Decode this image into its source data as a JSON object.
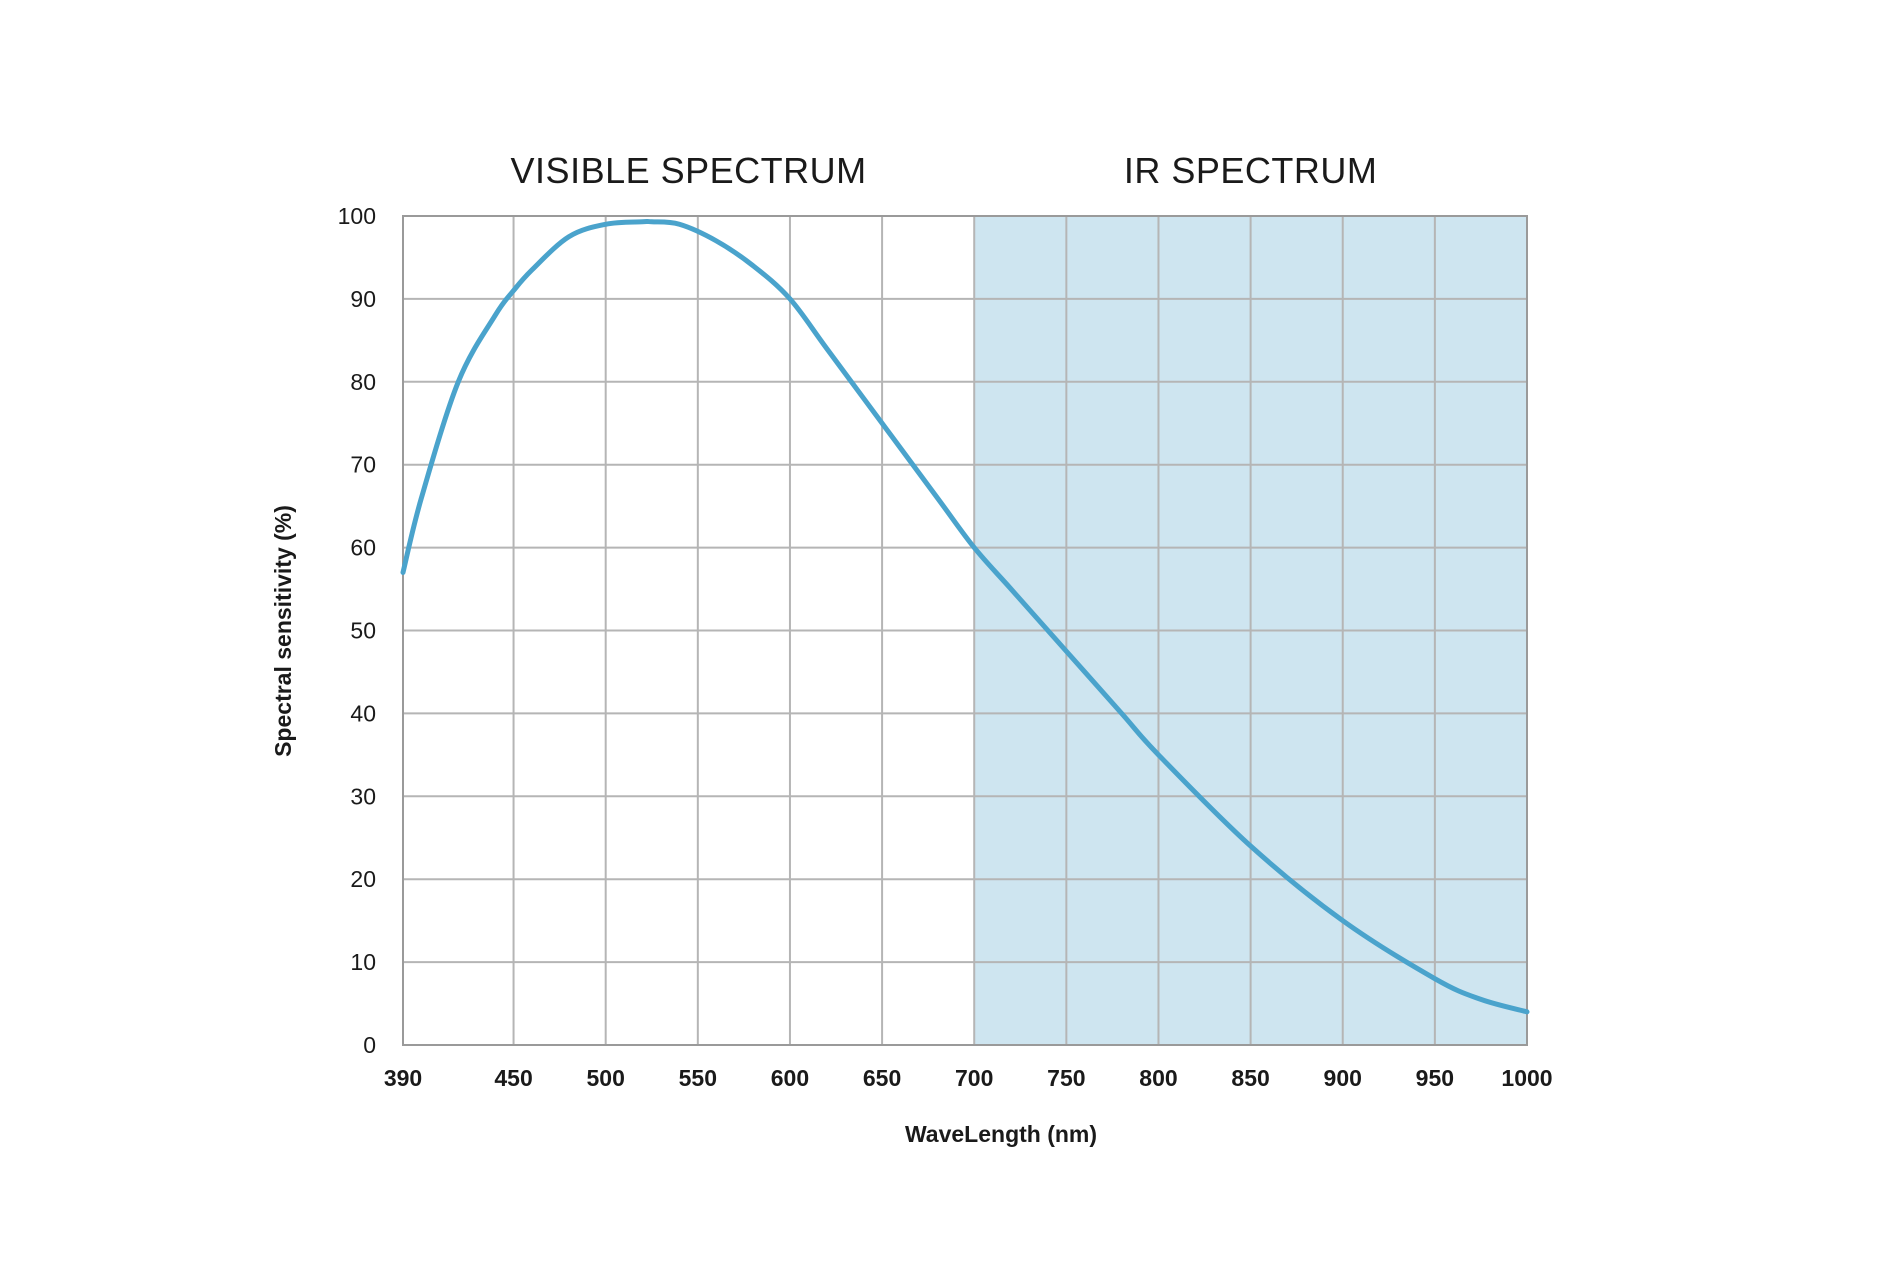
{
  "chart_data": {
    "type": "line",
    "xlabel": "WaveLength (nm)",
    "ylabel": "Spectral sensitivity (%)",
    "xlim": [
      390,
      1000
    ],
    "ylim": [
      0,
      100
    ],
    "x_ticks": [
      390,
      450,
      500,
      550,
      600,
      650,
      700,
      750,
      800,
      850,
      900,
      950,
      1000
    ],
    "y_ticks": [
      0,
      10,
      20,
      30,
      40,
      50,
      60,
      70,
      80,
      90,
      100
    ],
    "grid": true,
    "regions": [
      {
        "label": "VISIBLE SPECTRUM",
        "x_start": 390,
        "x_end": 700,
        "shaded": false
      },
      {
        "label": "IR SPECTRUM",
        "x_start": 700,
        "x_end": 1000,
        "shaded": true
      }
    ],
    "series": [
      {
        "x": [
          390,
          400,
          420,
          440,
          450,
          460,
          480,
          500,
          520,
          525,
          540,
          560,
          580,
          600,
          620,
          650,
          680,
          700,
          720,
          750,
          780,
          800,
          850,
          900,
          950,
          975,
          1000
        ],
        "y": [
          57,
          66,
          80,
          88,
          91,
          93.5,
          97.5,
          99,
          99.3,
          99.3,
          99,
          97,
          94,
          90,
          84,
          75,
          66,
          60,
          55,
          47.5,
          40,
          35,
          24,
          15,
          8,
          5.5,
          4
        ]
      }
    ]
  },
  "colors": {
    "line": "#4aa3cc",
    "ir_shade": "#cee5f0",
    "grid": "#b5b5b5"
  }
}
